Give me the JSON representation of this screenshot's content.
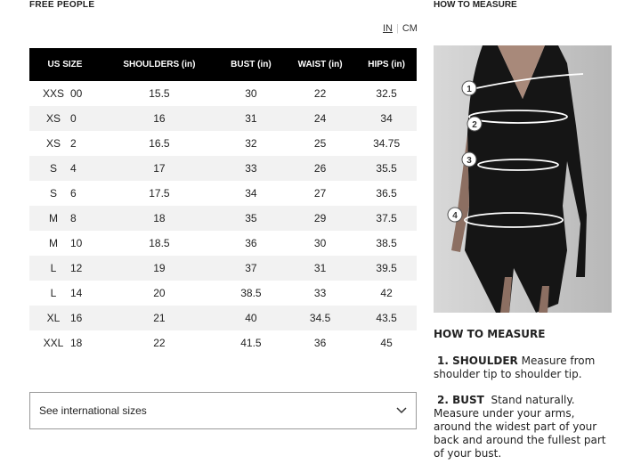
{
  "brand": "FREE PEOPLE",
  "units": {
    "in": "IN",
    "cm": "CM",
    "selected": "IN"
  },
  "table": {
    "headers": [
      "US SIZE",
      "SHOULDERS (in)",
      "BUST (in)",
      "WAIST (in)",
      "HIPS (in)"
    ],
    "rows": [
      [
        "XXS",
        "00",
        "15.5",
        "30",
        "22",
        "32.5"
      ],
      [
        "XS",
        "0",
        "16",
        "31",
        "24",
        "34"
      ],
      [
        "XS",
        "2",
        "16.5",
        "32",
        "25",
        "34.75"
      ],
      [
        "S",
        "4",
        "17",
        "33",
        "26",
        "35.5"
      ],
      [
        "S",
        "6",
        "17.5",
        "34",
        "27",
        "36.5"
      ],
      [
        "M",
        "8",
        "18",
        "35",
        "29",
        "37.5"
      ],
      [
        "M",
        "10",
        "18.5",
        "36",
        "30",
        "38.5"
      ],
      [
        "L",
        "12",
        "19",
        "37",
        "31",
        "39.5"
      ],
      [
        "L",
        "14",
        "20",
        "38.5",
        "33",
        "42"
      ],
      [
        "XL",
        "16",
        "21",
        "40",
        "34.5",
        "43.5"
      ],
      [
        "XXL",
        "18",
        "22",
        "41.5",
        "36",
        "45"
      ]
    ]
  },
  "dropdown": {
    "label": "See international sizes"
  },
  "howto": {
    "title": "HOW TO MEASURE",
    "figure_markers": [
      "1",
      "2",
      "3",
      "4"
    ],
    "subtitle": "HOW TO MEASURE",
    "items": [
      {
        "label": "1. SHOULDER",
        "text": "Measure from shoulder tip to shoulder tip."
      },
      {
        "label": "2. BUST",
        "text": "Stand naturally. Measure under your arms, around the widest part of your back and around the fullest part of your bust."
      }
    ]
  }
}
